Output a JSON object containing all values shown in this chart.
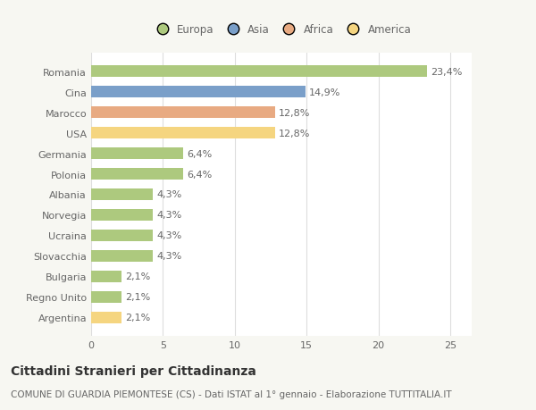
{
  "categories": [
    "Romania",
    "Cina",
    "Marocco",
    "USA",
    "Germania",
    "Polonia",
    "Albania",
    "Norvegia",
    "Ucraina",
    "Slovacchia",
    "Bulgaria",
    "Regno Unito",
    "Argentina"
  ],
  "values": [
    23.4,
    14.9,
    12.8,
    12.8,
    6.4,
    6.4,
    4.3,
    4.3,
    4.3,
    4.3,
    2.1,
    2.1,
    2.1
  ],
  "labels": [
    "23,4%",
    "14,9%",
    "12,8%",
    "12,8%",
    "6,4%",
    "6,4%",
    "4,3%",
    "4,3%",
    "4,3%",
    "4,3%",
    "2,1%",
    "2,1%",
    "2,1%"
  ],
  "colors": [
    "#adc97e",
    "#7a9fc9",
    "#e8aa82",
    "#f5d580",
    "#adc97e",
    "#adc97e",
    "#adc97e",
    "#adc97e",
    "#adc97e",
    "#adc97e",
    "#adc97e",
    "#adc97e",
    "#f5d580"
  ],
  "legend_labels": [
    "Europa",
    "Asia",
    "Africa",
    "America"
  ],
  "legend_colors": [
    "#adc97e",
    "#7a9fc9",
    "#e8aa82",
    "#f5d580"
  ],
  "title": "Cittadini Stranieri per Cittadinanza",
  "subtitle": "COMUNE DI GUARDIA PIEMONTESE (CS) - Dati ISTAT al 1° gennaio - Elaborazione TUTTITALIA.IT",
  "xlim": [
    0,
    26.5
  ],
  "xticks": [
    0,
    5,
    10,
    15,
    20,
    25
  ],
  "background_color": "#f7f7f2",
  "plot_bg_color": "#ffffff",
  "grid_color": "#dddddd",
  "text_color": "#666666",
  "label_color": "#666666",
  "title_fontsize": 10,
  "subtitle_fontsize": 7.5,
  "tick_fontsize": 8,
  "label_fontsize": 8,
  "bar_height": 0.55
}
